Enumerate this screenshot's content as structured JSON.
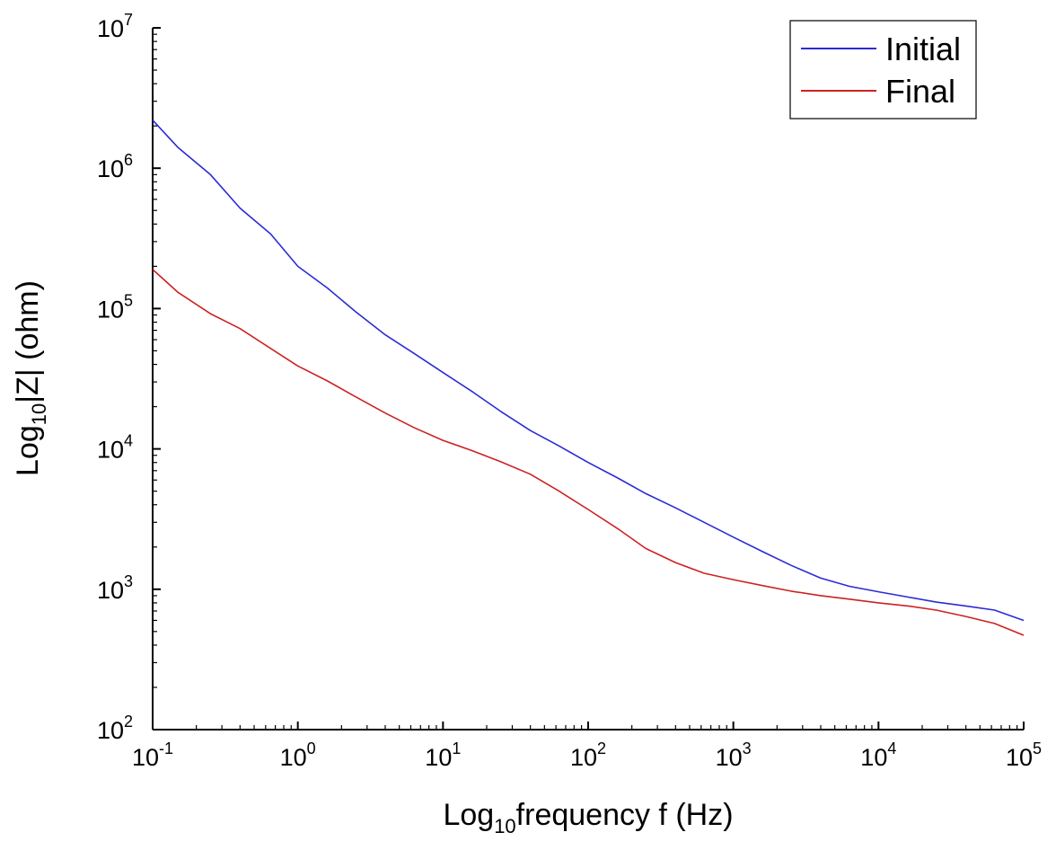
{
  "chart_data": {
    "type": "line",
    "title": "",
    "x_scale": "log",
    "y_scale": "log",
    "xlim": [
      0.1,
      100000
    ],
    "ylim": [
      100,
      10000000
    ],
    "grid": false,
    "legend_position": "top-right",
    "xlabel": {
      "prefix": "Log",
      "subscript": "10",
      "suffix": "frequency f (Hz)"
    },
    "ylabel": {
      "prefix": "Log",
      "subscript": "10",
      "suffix": "|Z| (ohm)"
    },
    "x_ticks": [
      {
        "base": "10",
        "exp": "-1",
        "value": 0.1
      },
      {
        "base": "10",
        "exp": "0",
        "value": 1
      },
      {
        "base": "10",
        "exp": "1",
        "value": 10
      },
      {
        "base": "10",
        "exp": "2",
        "value": 100
      },
      {
        "base": "10",
        "exp": "3",
        "value": 1000
      },
      {
        "base": "10",
        "exp": "4",
        "value": 10000
      },
      {
        "base": "10",
        "exp": "5",
        "value": 100000
      }
    ],
    "y_ticks": [
      {
        "base": "10",
        "exp": "2",
        "value": 100
      },
      {
        "base": "10",
        "exp": "3",
        "value": 1000
      },
      {
        "base": "10",
        "exp": "4",
        "value": 10000
      },
      {
        "base": "10",
        "exp": "5",
        "value": 100000
      },
      {
        "base": "10",
        "exp": "6",
        "value": 1000000
      },
      {
        "base": "10",
        "exp": "7",
        "value": 10000000
      }
    ],
    "series": [
      {
        "name": "Initial",
        "color": "#2b2bd6",
        "x": [
          0.1,
          0.15,
          0.25,
          0.4,
          0.65,
          1,
          1.6,
          2.5,
          4,
          6.3,
          10,
          16,
          25,
          40,
          63,
          100,
          160,
          250,
          400,
          630,
          1000,
          1600,
          2500,
          4000,
          6300,
          10000,
          16000,
          25000,
          40000,
          63000,
          100000
        ],
        "y": [
          2200000,
          1400000,
          900000,
          520000,
          340000,
          200000,
          140000,
          95000,
          65000,
          48000,
          35000,
          25500,
          18500,
          13500,
          10500,
          8000,
          6200,
          4800,
          3800,
          3000,
          2350,
          1850,
          1480,
          1200,
          1050,
          960,
          880,
          810,
          760,
          710,
          600
        ]
      },
      {
        "name": "Final",
        "color": "#cc2222",
        "x": [
          0.1,
          0.15,
          0.25,
          0.4,
          0.65,
          1,
          1.6,
          2.5,
          4,
          6.3,
          10,
          16,
          25,
          40,
          63,
          100,
          160,
          250,
          400,
          630,
          1000,
          1600,
          2500,
          4000,
          6300,
          10000,
          16000,
          25000,
          40000,
          63000,
          100000
        ],
        "y": [
          190000,
          130000,
          92000,
          72000,
          52000,
          39000,
          30500,
          23500,
          18000,
          14200,
          11500,
          9700,
          8100,
          6600,
          5000,
          3700,
          2700,
          1950,
          1550,
          1300,
          1170,
          1060,
          970,
          900,
          850,
          800,
          760,
          710,
          640,
          570,
          470
        ]
      }
    ]
  }
}
